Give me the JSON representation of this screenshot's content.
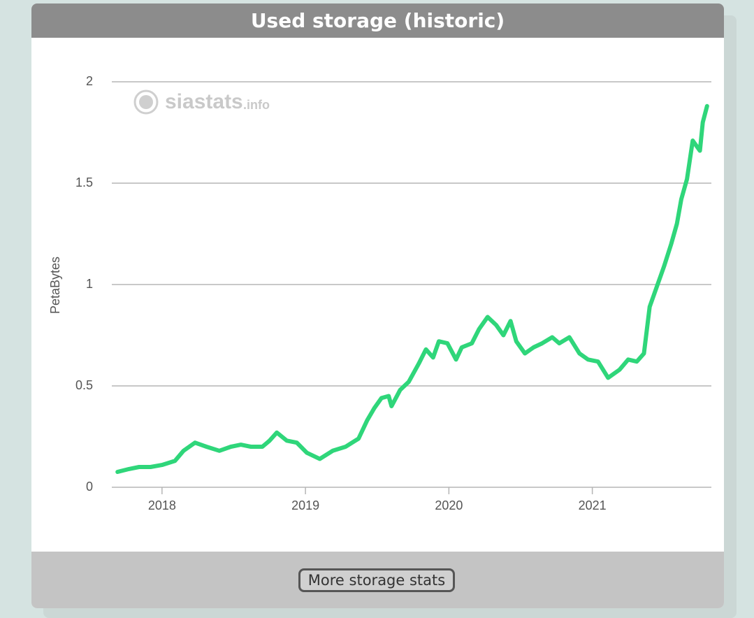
{
  "chart_data": {
    "type": "line",
    "title": "Used storage (historic)",
    "y_label": "PetaBytes",
    "color": "#2fd67a",
    "x": [
      2017.69,
      2017.77,
      2017.84,
      2017.92,
      2018.0,
      2018.09,
      2018.15,
      2018.23,
      2018.31,
      2018.4,
      2018.48,
      2018.55,
      2018.62,
      2018.7,
      2018.75,
      2018.8,
      2018.87,
      2018.94,
      2019.01,
      2019.1,
      2019.19,
      2019.28,
      2019.37,
      2019.43,
      2019.48,
      2019.53,
      2019.58,
      2019.6,
      2019.66,
      2019.72,
      2019.79,
      2019.84,
      2019.89,
      2019.93,
      2019.99,
      2020.05,
      2020.09,
      2020.16,
      2020.21,
      2020.27,
      2020.33,
      2020.38,
      2020.43,
      2020.47,
      2020.53,
      2020.59,
      2020.65,
      2020.72,
      2020.77,
      2020.84,
      2020.91,
      2020.97,
      2021.04,
      2021.11,
      2021.19,
      2021.25,
      2021.31,
      2021.36,
      2021.4,
      2021.45,
      2021.5,
      2021.55,
      2021.59,
      2021.62,
      2021.66,
      2021.7,
      2021.75,
      2021.77,
      2021.8
    ],
    "values": [
      0.076,
      0.09,
      0.1,
      0.1,
      0.11,
      0.13,
      0.18,
      0.22,
      0.2,
      0.18,
      0.2,
      0.21,
      0.2,
      0.2,
      0.23,
      0.27,
      0.23,
      0.22,
      0.17,
      0.14,
      0.18,
      0.2,
      0.24,
      0.33,
      0.39,
      0.44,
      0.45,
      0.4,
      0.48,
      0.52,
      0.61,
      0.68,
      0.64,
      0.72,
      0.71,
      0.63,
      0.69,
      0.71,
      0.78,
      0.84,
      0.8,
      0.75,
      0.82,
      0.72,
      0.66,
      0.69,
      0.71,
      0.74,
      0.71,
      0.74,
      0.66,
      0.63,
      0.62,
      0.54,
      0.58,
      0.63,
      0.62,
      0.66,
      0.89,
      0.99,
      1.09,
      1.2,
      1.3,
      1.42,
      1.52,
      1.71,
      1.66,
      1.8,
      1.88
    ],
    "xlim": [
      2017.65,
      2021.83
    ],
    "xticks": [
      2018,
      2019,
      2020,
      2021
    ],
    "ylim": [
      0,
      2
    ],
    "yticks": [
      0,
      0.5,
      1,
      1.5,
      2
    ],
    "grid": true
  },
  "watermark": {
    "name": "siastats",
    "suffix": ".info"
  },
  "button": {
    "label": "More storage stats"
  }
}
